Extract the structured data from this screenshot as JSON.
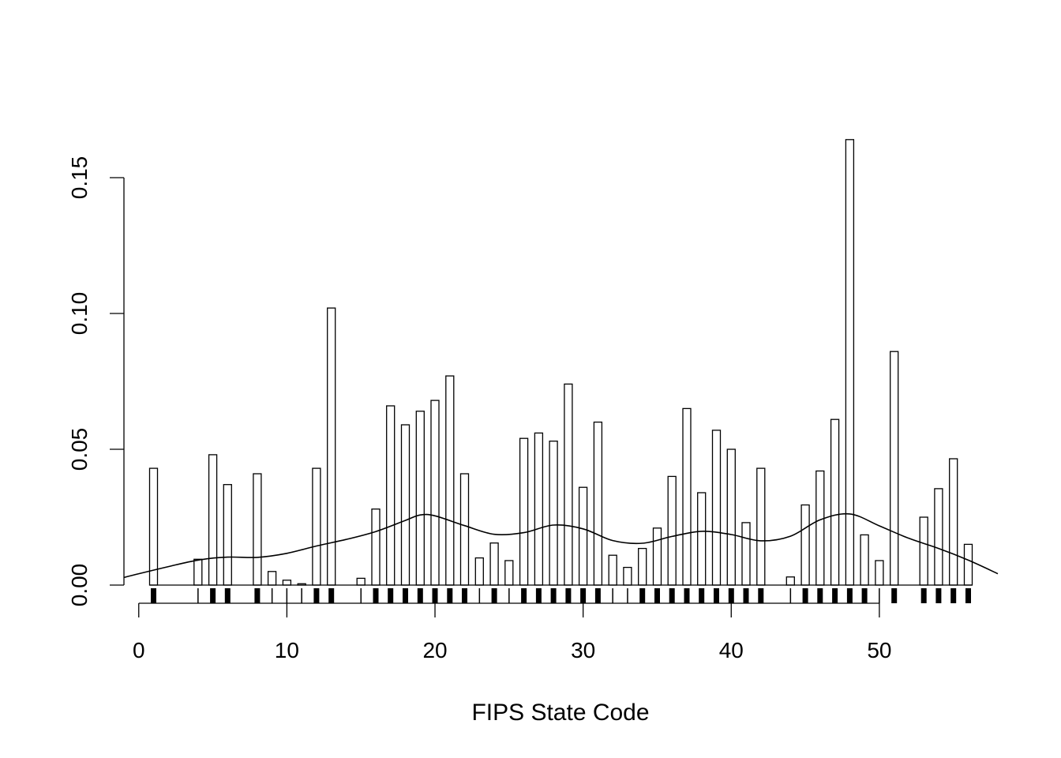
{
  "chart_data": {
    "type": "bar",
    "title": "",
    "xlabel": "FIPS State Code",
    "ylabel": "",
    "xlim": [
      -1,
      58
    ],
    "ylim": [
      0,
      0.165
    ],
    "xticks": [
      0,
      10,
      20,
      30,
      40,
      50
    ],
    "xtick_labels": [
      "0",
      "10",
      "20",
      "30",
      "40",
      "50"
    ],
    "yticks": [
      0,
      0.05,
      0.1,
      0.15
    ],
    "ytick_labels": [
      "0.00",
      "0.05",
      "0.10",
      "0.15"
    ],
    "grid": false,
    "legend": "none",
    "series": [
      {
        "kind": "bars",
        "x": [
          1,
          4,
          5,
          6,
          8,
          9,
          10,
          11,
          12,
          13,
          15,
          16,
          17,
          18,
          19,
          20,
          21,
          22,
          23,
          24,
          25,
          26,
          27,
          28,
          29,
          30,
          31,
          32,
          33,
          34,
          35,
          36,
          37,
          38,
          39,
          40,
          41,
          42,
          44,
          45,
          46,
          47,
          48,
          49,
          50,
          51,
          53,
          54,
          55,
          56
        ],
        "values": [
          0.043,
          0.0095,
          0.048,
          0.037,
          0.041,
          0.005,
          0.0018,
          0.0005,
          0.043,
          0.102,
          0.0025,
          0.028,
          0.066,
          0.059,
          0.064,
          0.068,
          0.077,
          0.041,
          0.01,
          0.0155,
          0.009,
          0.054,
          0.056,
          0.053,
          0.074,
          0.036,
          0.06,
          0.011,
          0.0065,
          0.0135,
          0.021,
          0.04,
          0.065,
          0.034,
          0.057,
          0.05,
          0.023,
          0.043,
          0.003,
          0.0295,
          0.042,
          0.061,
          0.164,
          0.0185,
          0.009,
          0.086,
          0.025,
          0.0355,
          0.0465,
          0.015
        ]
      },
      {
        "kind": "density",
        "x": [
          -1,
          0,
          2,
          4,
          6,
          8,
          10,
          12,
          14,
          16,
          18,
          19,
          20,
          22,
          24,
          26,
          28,
          30,
          32,
          34,
          36,
          38,
          40,
          42,
          44,
          46,
          48,
          50,
          52,
          54,
          56,
          58
        ],
        "values": [
          0.0028,
          0.0042,
          0.0068,
          0.0092,
          0.0103,
          0.0102,
          0.0117,
          0.0144,
          0.0168,
          0.0197,
          0.0238,
          0.0258,
          0.0255,
          0.0219,
          0.0187,
          0.0193,
          0.0221,
          0.0207,
          0.0164,
          0.0154,
          0.0179,
          0.0198,
          0.0186,
          0.0163,
          0.018,
          0.024,
          0.0262,
          0.0218,
          0.0172,
          0.0135,
          0.0092,
          0.0042
        ]
      },
      {
        "kind": "rug",
        "x": [
          1,
          4,
          5,
          6,
          8,
          9,
          10,
          11,
          12,
          13,
          15,
          16,
          17,
          18,
          19,
          20,
          21,
          22,
          23,
          24,
          25,
          26,
          27,
          28,
          29,
          30,
          31,
          32,
          33,
          34,
          35,
          36,
          37,
          38,
          39,
          40,
          41,
          42,
          44,
          45,
          46,
          47,
          48,
          49,
          50,
          51,
          53,
          54,
          55,
          56
        ],
        "values": [
          0.043,
          0.0095,
          0.048,
          0.037,
          0.041,
          0.005,
          0.0018,
          0.0005,
          0.043,
          0.102,
          0.0025,
          0.028,
          0.066,
          0.059,
          0.064,
          0.068,
          0.077,
          0.041,
          0.01,
          0.0155,
          0.009,
          0.054,
          0.056,
          0.053,
          0.074,
          0.036,
          0.06,
          0.011,
          0.0065,
          0.0135,
          0.021,
          0.04,
          0.065,
          0.034,
          0.057,
          0.05,
          0.023,
          0.043,
          0.003,
          0.0295,
          0.042,
          0.061,
          0.164,
          0.0185,
          0.009,
          0.086,
          0.025,
          0.0355,
          0.0465,
          0.015
        ]
      }
    ]
  }
}
